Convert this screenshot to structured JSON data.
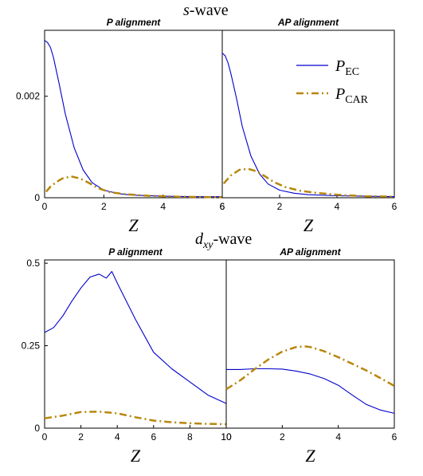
{
  "colors": {
    "ec": "#0000cc",
    "car": "#b8860b",
    "axis": "#000000"
  },
  "chart_data": [
    {
      "type": "line",
      "group_title": "s-wave",
      "title": "P alignment",
      "xlabel": "Z",
      "xlim": [
        0,
        6
      ],
      "ylim": [
        0,
        0.0033
      ],
      "xticks": [
        0,
        2,
        4,
        6
      ],
      "yticks": [
        0,
        0.002
      ],
      "ytick_labels": [
        "0",
        "0.002"
      ],
      "series": [
        {
          "name": "P_EC",
          "x": [
            0,
            0.1,
            0.2,
            0.3,
            0.5,
            0.7,
            1.0,
            1.3,
            1.6,
            2.0,
            2.5,
            3.0,
            4.0,
            5.0,
            6.0
          ],
          "y": [
            0.0031,
            0.00306,
            0.00296,
            0.00276,
            0.00222,
            0.00165,
            0.00098,
            0.00055,
            0.0003,
            0.00015,
            8e-05,
            5e-05,
            3e-05,
            2e-05,
            2e-05
          ]
        },
        {
          "name": "P_CAR",
          "x": [
            0.05,
            0.2,
            0.4,
            0.6,
            0.9,
            1.2,
            1.5,
            1.8,
            2.2,
            2.7,
            3.5,
            4.5,
            6.0
          ],
          "y": [
            0.00012,
            0.00022,
            0.00031,
            0.00038,
            0.00042,
            0.00038,
            0.00029,
            0.00019,
            0.00011,
            7e-05,
            4e-05,
            2e-05,
            1e-05
          ]
        }
      ]
    },
    {
      "type": "line",
      "group_title": "s-wave",
      "title": "AP alignment",
      "xlabel": "Z",
      "xlim": [
        0,
        6
      ],
      "ylim": [
        0,
        0.0033
      ],
      "xticks": [
        0,
        2,
        4,
        6
      ],
      "xtick_labels": [
        "6",
        "2",
        "4",
        "6"
      ],
      "series": [
        {
          "name": "P_EC",
          "x": [
            0,
            0.1,
            0.2,
            0.3,
            0.5,
            0.7,
            1.0,
            1.3,
            1.6,
            2.0,
            2.5,
            3.0,
            4.0,
            5.0,
            6.0
          ],
          "y": [
            0.00285,
            0.0028,
            0.00266,
            0.00245,
            0.00195,
            0.0014,
            0.00082,
            0.00047,
            0.00027,
            0.00015,
            9e-05,
            6e-05,
            4e-05,
            3e-05,
            2e-05
          ]
        },
        {
          "name": "P_CAR",
          "x": [
            0.05,
            0.3,
            0.6,
            0.9,
            1.2,
            1.5,
            1.8,
            2.2,
            2.7,
            3.2,
            4.0,
            5.0,
            6.0
          ],
          "y": [
            0.00028,
            0.00044,
            0.00055,
            0.00057,
            0.00052,
            0.00042,
            0.00031,
            0.00021,
            0.00014,
            0.0001,
            6e-05,
            3e-05,
            2e-05
          ]
        }
      ]
    },
    {
      "type": "line",
      "group_title": "d_xy-wave",
      "title": "P alignment",
      "xlabel": "Z",
      "xlim": [
        0,
        10
      ],
      "ylim": [
        0,
        0.51
      ],
      "xticks": [
        0,
        2,
        4,
        6,
        8,
        10
      ],
      "yticks": [
        0,
        0.25,
        0.5
      ],
      "ytick_labels": [
        "0",
        "0.25",
        "0.5"
      ],
      "series": [
        {
          "name": "P_EC",
          "x": [
            0,
            0.5,
            1.0,
            1.5,
            2.0,
            2.5,
            3.0,
            3.4,
            3.55,
            3.7,
            4.0,
            5.0,
            6.0,
            7.0,
            8.0,
            9.0,
            10.0
          ],
          "y": [
            0.29,
            0.305,
            0.34,
            0.385,
            0.425,
            0.458,
            0.467,
            0.455,
            0.465,
            0.475,
            0.44,
            0.33,
            0.23,
            0.18,
            0.14,
            0.1,
            0.075
          ]
        },
        {
          "name": "P_CAR",
          "x": [
            0,
            1.0,
            2.0,
            3.0,
            4.0,
            5.0,
            6.0,
            7.0,
            8.0,
            9.0,
            10.0
          ],
          "y": [
            0.03,
            0.038,
            0.049,
            0.05,
            0.045,
            0.033,
            0.023,
            0.018,
            0.015,
            0.013,
            0.012
          ]
        }
      ]
    },
    {
      "type": "line",
      "group_title": "d_xy-wave",
      "title": "AP alignment",
      "xlabel": "Z",
      "xlim": [
        0,
        6
      ],
      "ylim": [
        0,
        0.51
      ],
      "xticks": [
        0,
        2,
        4,
        6
      ],
      "xtick_labels": [
        "10",
        "2",
        "4",
        "6"
      ],
      "series": [
        {
          "name": "P_EC",
          "x": [
            0,
            0.5,
            1.0,
            1.5,
            2.0,
            2.5,
            3.0,
            3.5,
            4.0,
            4.5,
            5.0,
            5.5,
            6.0
          ],
          "y": [
            0.178,
            0.178,
            0.18,
            0.18,
            0.179,
            0.173,
            0.164,
            0.15,
            0.13,
            0.1,
            0.072,
            0.055,
            0.045
          ]
        },
        {
          "name": "P_CAR",
          "x": [
            0,
            0.5,
            1.0,
            1.5,
            2.0,
            2.5,
            2.8,
            3.0,
            3.5,
            4.0,
            4.5,
            5.0,
            5.5,
            6.0
          ],
          "y": [
            0.118,
            0.145,
            0.178,
            0.208,
            0.232,
            0.246,
            0.248,
            0.246,
            0.233,
            0.215,
            0.195,
            0.175,
            0.152,
            0.128
          ]
        }
      ]
    }
  ],
  "legend": {
    "ec_label": "P",
    "ec_sub": "EC",
    "car_label": "P",
    "car_sub": "CAR"
  },
  "group_titles": {
    "s_prefix": "s",
    "s_suffix": "-wave",
    "d_prefix": "d",
    "d_sub": "xy",
    "d_suffix": "-wave"
  }
}
